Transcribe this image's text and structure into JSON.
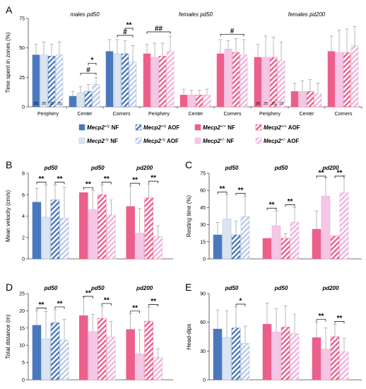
{
  "chart_data": [
    {
      "panel": "A",
      "type": "bar",
      "ylabel": "Time spent in zones (%)",
      "yticks": [
        "0",
        "25",
        "50",
        "75"
      ],
      "ylim": [
        0,
        75
      ],
      "groups": [
        {
          "title": "males pd50",
          "zones": [
            {
              "label": "Periphery",
              "values": [
                44,
                44,
                43,
                44
              ],
              "errors": [
                9,
                11,
                10,
                11
              ],
              "n_label": "25"
            },
            {
              "label": "Center",
              "values": [
                9,
                12,
                13,
                19
              ],
              "errors": [
                4,
                5,
                6,
                6
              ]
            },
            {
              "label": "Corners",
              "values": [
                47,
                45,
                45,
                38
              ],
              "errors": [
                10,
                12,
                11,
                14
              ]
            }
          ]
        },
        {
          "title": "females pd50",
          "zones": [
            {
              "label": "Periphery",
              "values": [
                45,
                42,
                43,
                47
              ],
              "errors": [
                8,
                12,
                11,
                13
              ]
            },
            {
              "label": "Center",
              "values": [
                10,
                10,
                10,
                10
              ],
              "errors": [
                5,
                4,
                4,
                5
              ]
            },
            {
              "label": "Corners",
              "values": [
                45,
                49,
                46,
                44
              ],
              "errors": [
                12,
                7,
                12,
                13
              ]
            }
          ]
        },
        {
          "title": "females pd200",
          "zones": [
            {
              "label": "Periphery",
              "values": [
                42,
                42,
                42,
                39
              ],
              "errors": [
                11,
                18,
                17,
                16
              ]
            },
            {
              "label": "Center",
              "values": [
                13,
                13,
                13,
                11
              ],
              "errors": [
                7,
                9,
                10,
                9
              ]
            },
            {
              "label": "Corners",
              "values": [
                47,
                46,
                46,
                52
              ],
              "errors": [
                13,
                19,
                20,
                16
              ]
            }
          ]
        }
      ],
      "n_labels": [
        "25",
        "25",
        "25",
        "25",
        "25",
        "25",
        "25",
        "23"
      ],
      "significance": [
        {
          "group": 0,
          "zone": 1,
          "from": 1,
          "to": 3,
          "label": "#"
        },
        {
          "group": 0,
          "zone": 1,
          "from": 2,
          "to": 3,
          "label": "*"
        },
        {
          "group": 0,
          "zone": 2,
          "from": 1,
          "to": 3,
          "label": "#"
        },
        {
          "group": 0,
          "zone": 2,
          "from": 2,
          "to": 3,
          "label": "**"
        },
        {
          "group": 1,
          "zone": 0,
          "from": 0,
          "to": 3,
          "label": "##"
        },
        {
          "group": 1,
          "zone": 2,
          "from": 0,
          "to": 3,
          "label": "#"
        }
      ]
    },
    {
      "panel": "B",
      "type": "bar",
      "ylabel": "Mean velocity (cm/s)",
      "yticks": [
        "0",
        "2",
        "4",
        "6",
        "8"
      ],
      "ylim": [
        0,
        8
      ],
      "group_titles": [
        "pd50",
        "pd50",
        "pd200"
      ],
      "values": [
        [
          5.3,
          3.9,
          5.5,
          3.8
        ],
        [
          6.2,
          4.6,
          6.0,
          4.1
        ],
        [
          4.9,
          2.4,
          5.7,
          2.1
        ]
      ],
      "errors": [
        [
          1.3,
          3.0,
          1.4,
          2.9
        ],
        [
          0.0,
          1.8,
          0.9,
          1.4
        ],
        [
          1.9,
          2.3,
          1.3,
          1.0
        ]
      ],
      "brackets": [
        {
          "group": 0,
          "from": 0,
          "to": 1,
          "label": "**"
        },
        {
          "group": 0,
          "from": 2,
          "to": 3,
          "label": "**"
        },
        {
          "group": 1,
          "from": 0,
          "to": 1,
          "label": "**"
        },
        {
          "group": 1,
          "from": 2,
          "to": 3,
          "label": "**"
        },
        {
          "group": 2,
          "from": 0,
          "to": 1,
          "label": "**"
        },
        {
          "group": 2,
          "from": 2,
          "to": 3,
          "label": "**"
        }
      ]
    },
    {
      "panel": "C",
      "type": "bar",
      "ylabel": "Resting time (%)",
      "yticks": [
        "0",
        "15",
        "30",
        "45",
        "60",
        "75"
      ],
      "ylim": [
        0,
        75
      ],
      "group_titles": [
        "pd50",
        "pd50",
        "pd200"
      ],
      "values": [
        [
          21,
          35,
          21,
          37
        ],
        [
          18,
          29,
          18,
          32
        ],
        [
          26,
          55,
          20,
          58
        ]
      ],
      "errors": [
        [
          11,
          21,
          12,
          18
        ],
        [
          0,
          13,
          4,
          13
        ],
        [
          16,
          16,
          0,
          15
        ]
      ],
      "brackets": [
        {
          "group": 0,
          "from": 0,
          "to": 1,
          "label": "**"
        },
        {
          "group": 0,
          "from": 2,
          "to": 3,
          "label": "**"
        },
        {
          "group": 1,
          "from": 0,
          "to": 1,
          "label": "**"
        },
        {
          "group": 1,
          "from": 2,
          "to": 3,
          "label": "**"
        },
        {
          "group": 2,
          "from": 0,
          "to": 1,
          "label": "**"
        },
        {
          "group": 2,
          "from": 2,
          "to": 3,
          "label": "**"
        }
      ]
    },
    {
      "panel": "D",
      "type": "bar",
      "ylabel": "Total distance (m)",
      "yticks": [
        "0",
        "5",
        "10",
        "15",
        "20",
        "25"
      ],
      "ylim": [
        0,
        25
      ],
      "group_titles": [
        "pd50",
        "pd50",
        "pd200"
      ],
      "values": [
        [
          15.8,
          11.8,
          16.5,
          11.5
        ],
        [
          18.6,
          14.0,
          17.8,
          12.4
        ],
        [
          14.6,
          7.5,
          17.0,
          6.5
        ]
      ],
      "errors": [
        [
          4.2,
          8.0,
          3.8,
          6.0
        ],
        [
          5.5,
          5.0,
          3.5,
          4.5
        ],
        [
          4.5,
          7.0,
          4.0,
          2.5
        ]
      ],
      "brackets": [
        {
          "group": 0,
          "from": 0,
          "to": 1,
          "label": "**"
        },
        {
          "group": 0,
          "from": 2,
          "to": 3,
          "label": "**"
        },
        {
          "group": 1,
          "from": 0,
          "to": 1,
          "label": "**"
        },
        {
          "group": 1,
          "from": 2,
          "to": 3,
          "label": "**"
        },
        {
          "group": 2,
          "from": 0,
          "to": 1,
          "label": "**"
        },
        {
          "group": 2,
          "from": 2,
          "to": 3,
          "label": "**"
        }
      ]
    },
    {
      "panel": "E",
      "type": "bar",
      "ylabel": "Head-dips",
      "yticks": [
        "0",
        "30",
        "60",
        "90"
      ],
      "ylim": [
        0,
        90
      ],
      "group_titles": [
        "pd50",
        "pd50",
        "pd200"
      ],
      "values": [
        [
          53,
          44,
          54,
          38
        ],
        [
          58,
          50,
          55,
          48
        ],
        [
          44,
          32,
          45,
          29
        ]
      ],
      "errors": [
        [
          20,
          28,
          22,
          18
        ],
        [
          22,
          24,
          22,
          20
        ],
        [
          16,
          22,
          13,
          14
        ]
      ],
      "brackets": [
        {
          "group": 0,
          "from": 2,
          "to": 3,
          "label": "*"
        },
        {
          "group": 2,
          "from": 0,
          "to": 1,
          "label": "**"
        },
        {
          "group": 2,
          "from": 2,
          "to": 3,
          "label": "**"
        }
      ]
    }
  ],
  "legend": {
    "items": [
      {
        "gene": "Mecp2",
        "sup": "+/y",
        "diet": "NF",
        "style": "blue-solid"
      },
      {
        "gene": "Mecp2",
        "sup": "+/y",
        "diet": "AOF",
        "style": "blue-hatch"
      },
      {
        "gene": "Mecp2",
        "sup": "+/+",
        "diet": "NF",
        "style": "pink-solid"
      },
      {
        "gene": "Mecp2",
        "sup": "+/+",
        "diet": "AOF",
        "style": "pink-hatch"
      },
      {
        "gene": "Mecp2",
        "sup": "-/y",
        "diet": "NF",
        "style": "lightblue-solid"
      },
      {
        "gene": "Mecp2",
        "sup": "-/y",
        "diet": "AOF",
        "style": "lightblue-hatch"
      },
      {
        "gene": "Mecp2",
        "sup": "+/-",
        "diet": "NF",
        "style": "lightpink-solid"
      },
      {
        "gene": "Mecp2",
        "sup": "+/-",
        "diet": "AOF",
        "style": "lightpink-hatch"
      }
    ]
  },
  "colors": {
    "blue": "#4a78bd",
    "lightblue": "#dbe5f2",
    "pink": "#ec5f8a",
    "lightpink": "#f5c7e7",
    "error": "#9a9a9a"
  }
}
